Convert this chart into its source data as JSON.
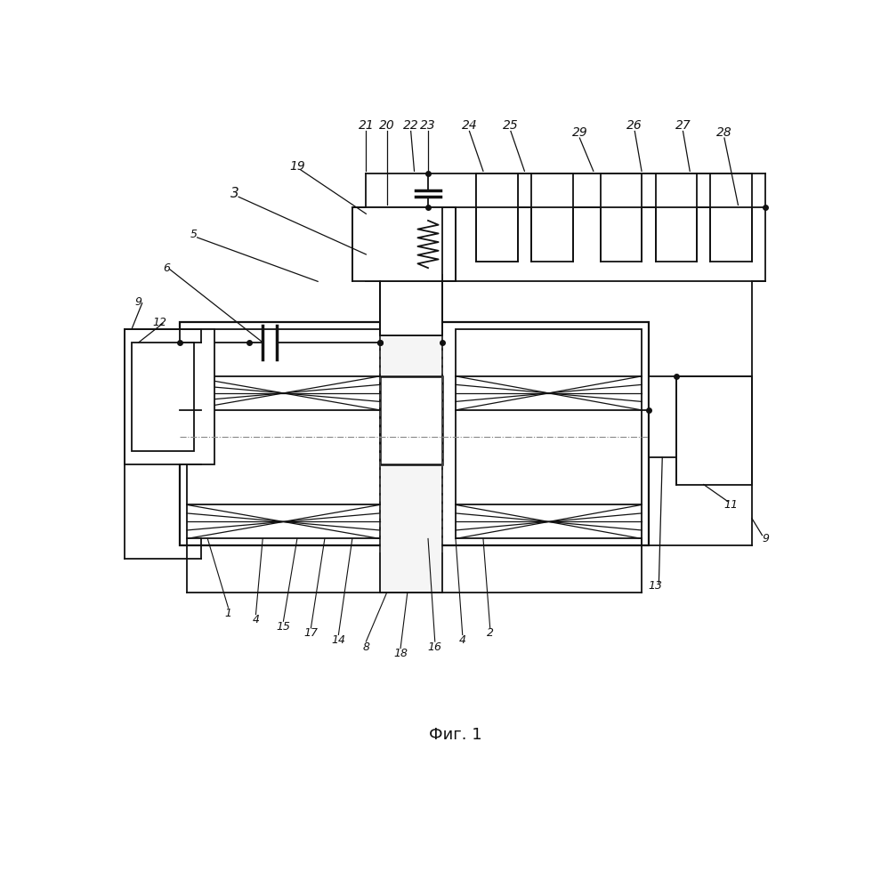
{
  "title": "Фиг. 1",
  "bg": "#ffffff",
  "lc": "#111111",
  "lw": 1.3,
  "fig_w": 9.99,
  "fig_h": 9.88
}
